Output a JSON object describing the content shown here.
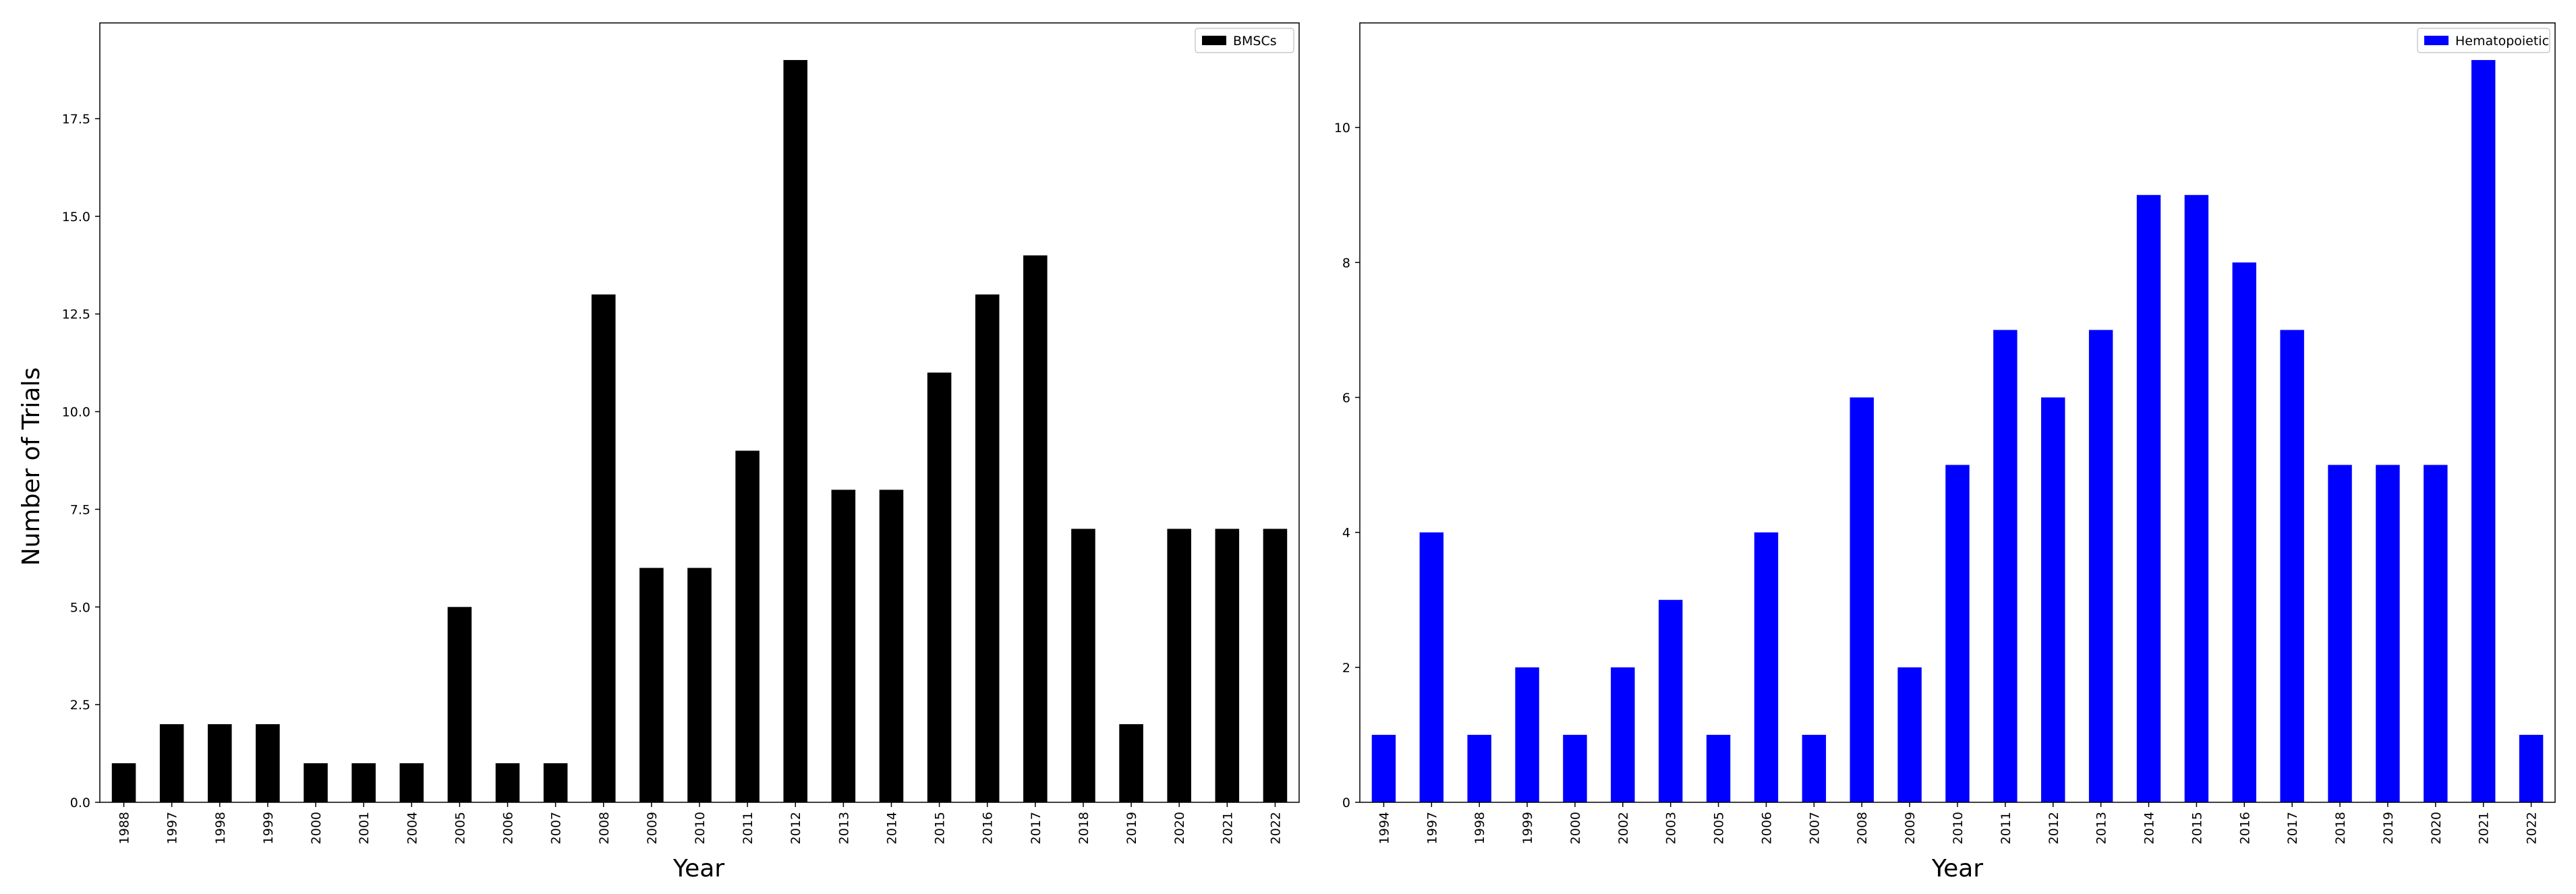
{
  "chart_data": [
    {
      "type": "bar",
      "categories": [
        "1988",
        "1997",
        "1998",
        "1999",
        "2000",
        "2001",
        "2004",
        "2005",
        "2006",
        "2007",
        "2008",
        "2009",
        "2010",
        "2011",
        "2012",
        "2013",
        "2014",
        "2015",
        "2016",
        "2017",
        "2018",
        "2019",
        "2020",
        "2021",
        "2022"
      ],
      "series": [
        {
          "name": "BMSCs",
          "values": [
            1,
            2,
            2,
            2,
            1,
            1,
            1,
            5,
            1,
            1,
            13,
            6,
            6,
            9,
            19,
            8,
            8,
            11,
            13,
            14,
            7,
            2,
            7,
            7,
            7
          ],
          "color": "#000000"
        }
      ],
      "xlabel": "Year",
      "ylabel": "Number of Trials",
      "ylim": [
        0,
        19.95
      ],
      "yticks": [
        0.0,
        2.5,
        5.0,
        7.5,
        10.0,
        12.5,
        15.0,
        17.5
      ],
      "ytick_labels": [
        "0.0",
        "2.5",
        "5.0",
        "7.5",
        "10.0",
        "12.5",
        "15.0",
        "17.5"
      ],
      "legend_position": "top-right",
      "grid": false
    },
    {
      "type": "bar",
      "categories": [
        "1994",
        "1997",
        "1998",
        "1999",
        "2000",
        "2002",
        "2003",
        "2005",
        "2006",
        "2007",
        "2008",
        "2009",
        "2010",
        "2011",
        "2012",
        "2013",
        "2014",
        "2015",
        "2016",
        "2017",
        "2018",
        "2019",
        "2020",
        "2021",
        "2022"
      ],
      "series": [
        {
          "name": "Hematopoietic",
          "values": [
            1,
            4,
            1,
            2,
            1,
            2,
            3,
            1,
            4,
            1,
            6,
            2,
            5,
            7,
            6,
            7,
            9,
            9,
            8,
            7,
            5,
            5,
            5,
            11,
            1
          ],
          "color": "#0000ff"
        }
      ],
      "xlabel": "Year",
      "ylabel": "",
      "ylim": [
        0,
        11.55
      ],
      "yticks": [
        0,
        2,
        4,
        6,
        8,
        10
      ],
      "ytick_labels": [
        "0",
        "2",
        "4",
        "6",
        "8",
        "10"
      ],
      "legend_position": "top-right",
      "grid": false
    }
  ]
}
